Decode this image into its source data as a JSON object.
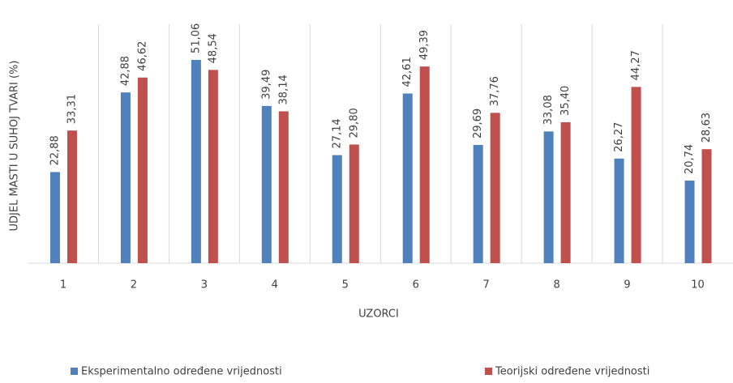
{
  "chart_data": {
    "type": "bar",
    "x_label": "UZORCI",
    "y_label": "UDJEL MASTI U SUHOJ TVARI (%)",
    "categories": [
      "1",
      "2",
      "3",
      "4",
      "5",
      "6",
      "7",
      "8",
      "9",
      "10"
    ],
    "series": [
      {
        "name": "Eksperimentalno određene vrijednosti",
        "color": "#4f81bd",
        "values": [
          22.88,
          42.88,
          51.06,
          39.49,
          27.14,
          42.61,
          29.69,
          33.08,
          26.27,
          20.74
        ],
        "value_labels": [
          "22,88",
          "42,88",
          "51,06",
          "39,49",
          "27,14",
          "42,61",
          "29,69",
          "33,08",
          "26,27",
          "20,74"
        ]
      },
      {
        "name": "Teorijski određene vrijednosti",
        "color": "#c0504d",
        "values": [
          33.31,
          46.62,
          48.54,
          38.14,
          29.8,
          49.39,
          37.76,
          35.4,
          44.27,
          28.63
        ],
        "value_labels": [
          "33,31",
          "46,62",
          "48,54",
          "38,14",
          "29,80",
          "49,39",
          "37,76",
          "35,40",
          "44,27",
          "28,63"
        ]
      }
    ],
    "ylim": [
      0,
      60
    ],
    "grid": true,
    "legend": "bottom"
  }
}
